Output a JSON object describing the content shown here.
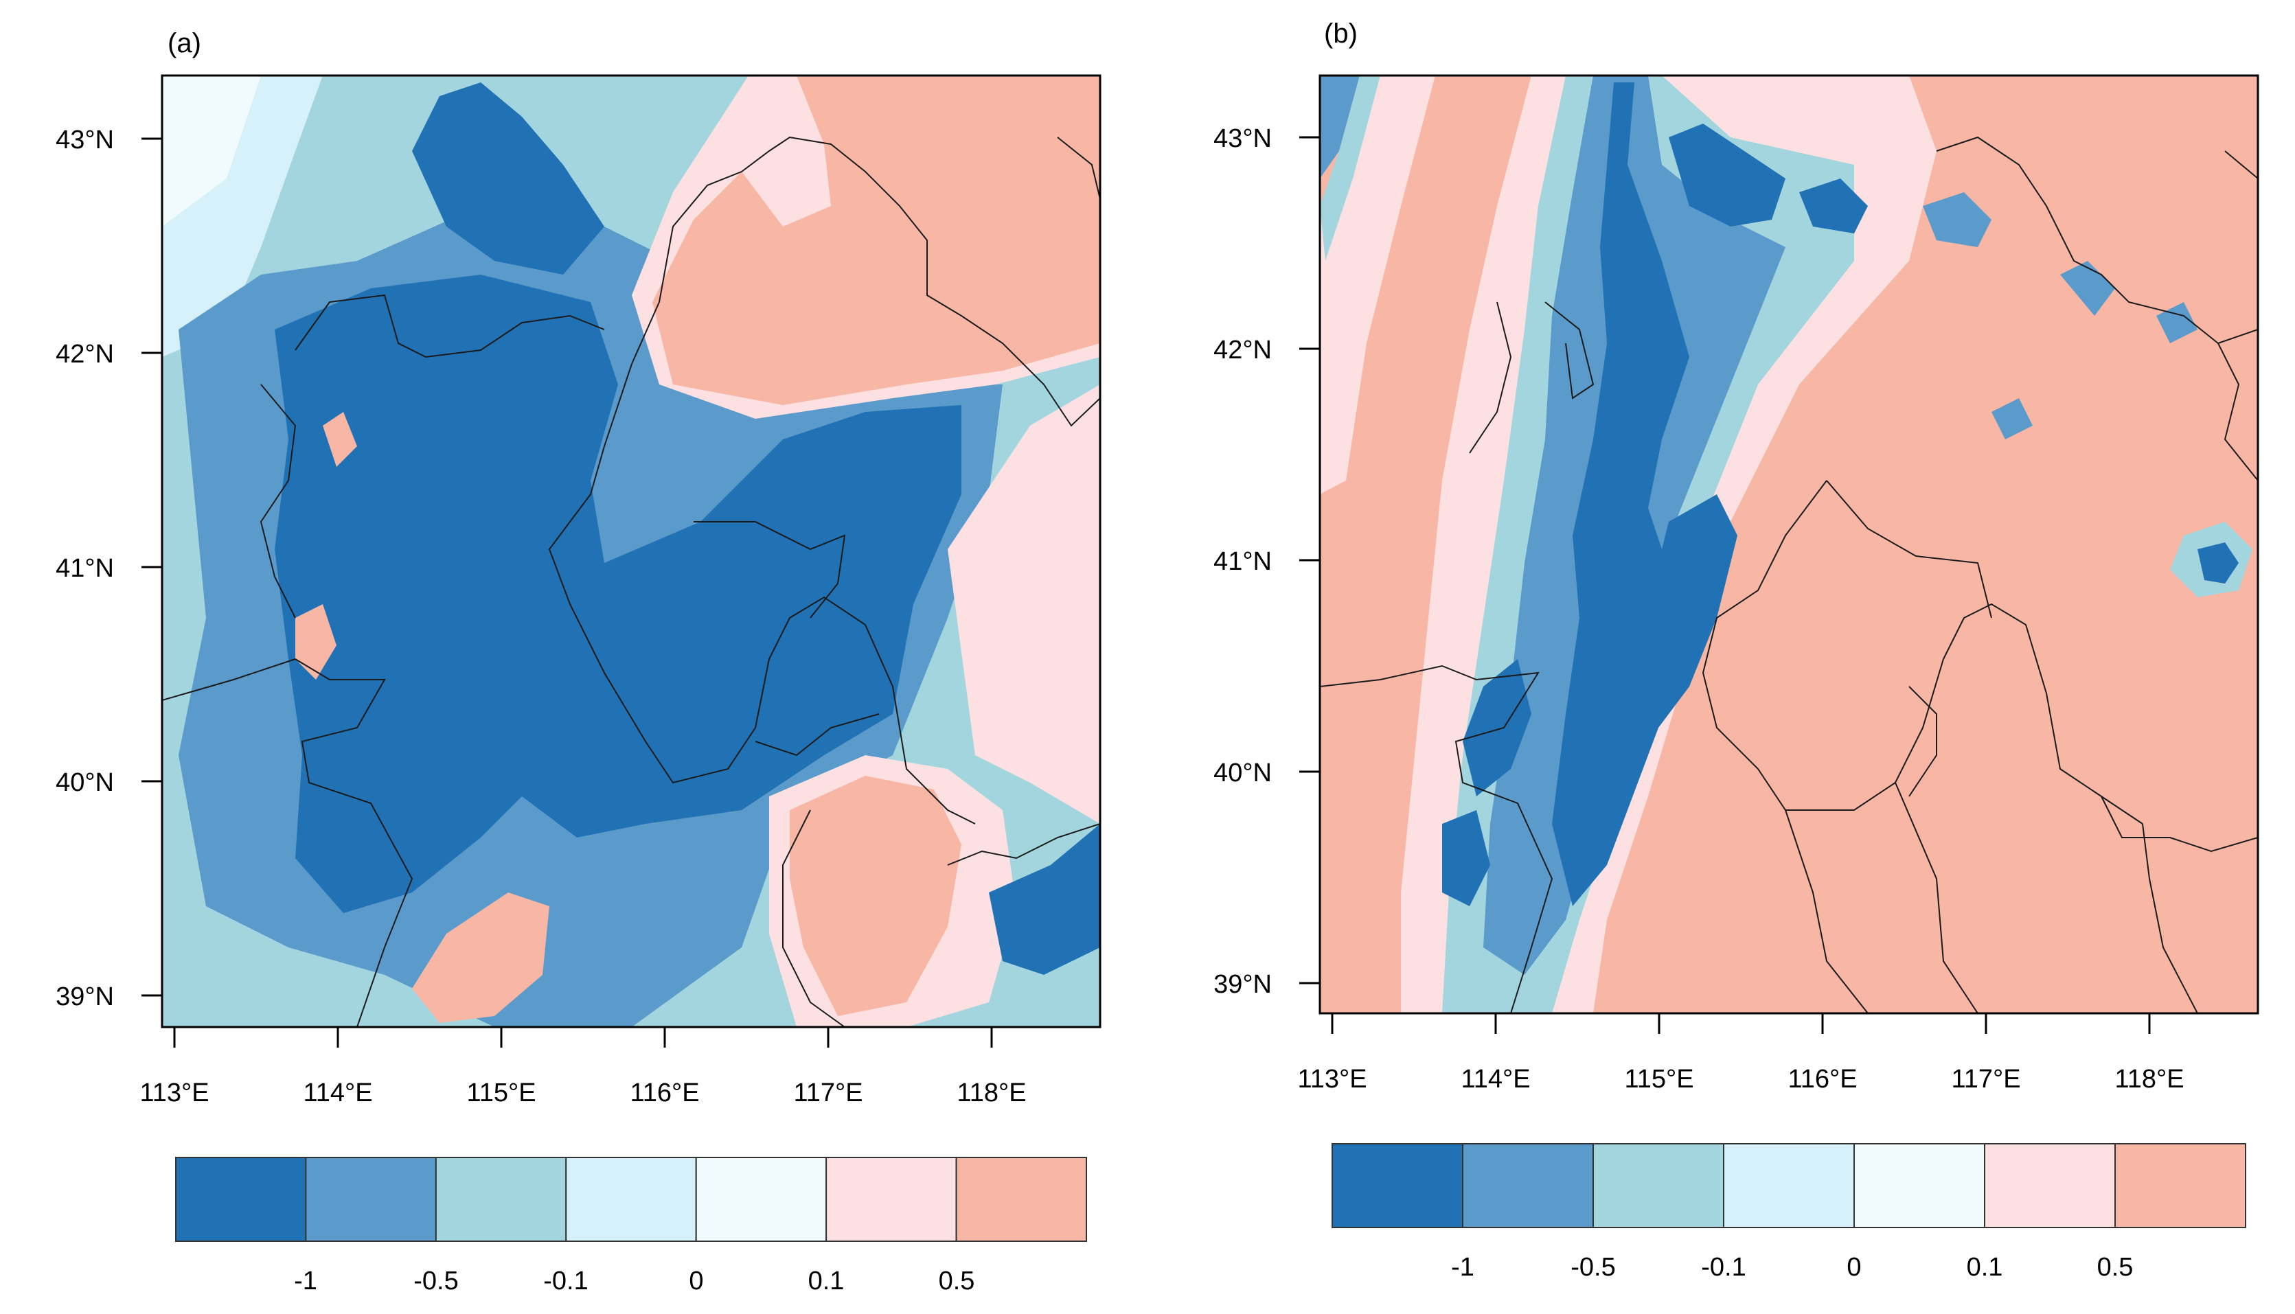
{
  "panels": [
    {
      "label": "(a)",
      "lat_ticks": [
        "43°N",
        "42°N",
        "41°N",
        "40°N",
        "39°N"
      ],
      "lon_ticks": [
        "113°E",
        "114°E",
        "115°E",
        "116°E",
        "117°E",
        "118°E"
      ],
      "colorbar_labels": [
        "-1",
        "-0.5",
        "-0.1",
        "0",
        "0.1",
        "0.5"
      ]
    },
    {
      "label": "(b)",
      "lat_ticks": [
        "43°N",
        "42°N",
        "41°N",
        "40°N",
        "39°N"
      ],
      "lon_ticks": [
        "113°E",
        "114°E",
        "115°E",
        "116°E",
        "117°E",
        "118°E"
      ],
      "colorbar_labels": [
        "-1",
        "-0.5",
        "-0.1",
        "0",
        "0.1",
        "0.5"
      ]
    }
  ],
  "colorbar_colors": [
    "#2171b5",
    "#5b9bcc",
    "#a3d5df",
    "#d6f1fa",
    "#f1fbfe",
    "#fde0e2",
    "#f8b6a5"
  ],
  "colorbar_levels": [
    -1,
    -0.5,
    -0.1,
    0,
    0.1,
    0.5
  ]
}
